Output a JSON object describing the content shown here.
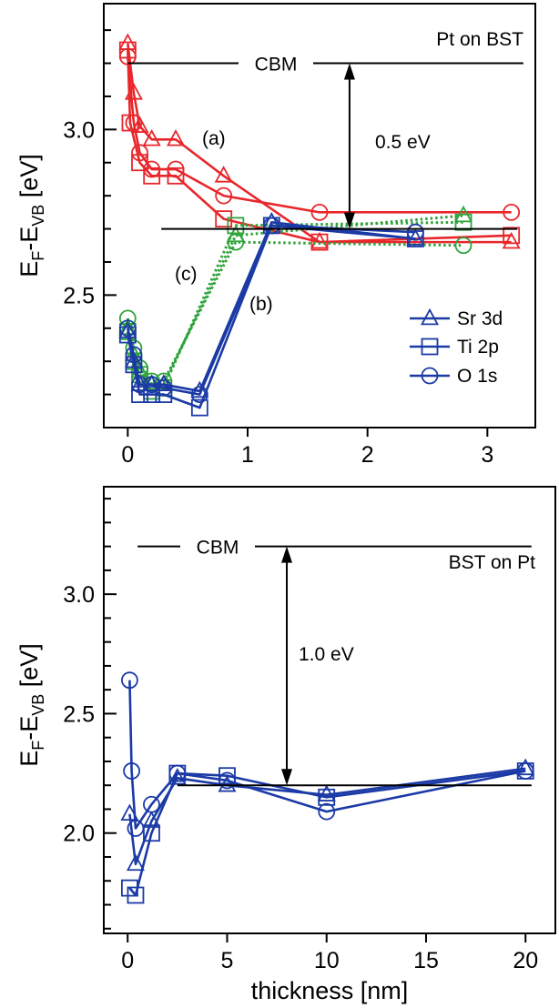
{
  "colors": {
    "red": "#e8262b",
    "green": "#2ea33a",
    "blue": "#1b3aa6",
    "black": "#000000"
  },
  "shared": {
    "xlabel": "thickness [nm]"
  },
  "chart_data": [
    {
      "type": "line",
      "panel": "top",
      "title": "Pt on BST",
      "ylabel_main": "E",
      "ylabel_sub1": "F",
      "ylabel_mid": "-E",
      "ylabel_sub2": "VB",
      "ylabel_unit": " [eV]",
      "xlim": [
        -0.2,
        3.4
      ],
      "ylim": [
        2.1,
        3.38
      ],
      "xticks": [
        0,
        1,
        2,
        3
      ],
      "xtick_labels": [
        "0",
        "1",
        "2",
        "3"
      ],
      "yticks": [
        2.5,
        3.0
      ],
      "ytick_labels": [
        "2.5",
        "3.0"
      ],
      "cbm": {
        "label": "CBM",
        "y": 3.2,
        "x_range": [
          0.0,
          3.3
        ]
      },
      "ref_level": {
        "y": 2.7,
        "x_range": [
          0.28,
          3.25
        ]
      },
      "arrow": {
        "x": 1.85,
        "y_from": 2.7,
        "y_to": 3.2,
        "label": "0.5 eV"
      },
      "annotations": [
        {
          "text": "(a)",
          "x": 0.69,
          "y": 2.98
        },
        {
          "text": "(b)",
          "x": 1.1,
          "y": 2.41
        },
        {
          "text": "(c)",
          "x": 0.48,
          "y": 2.51
        }
      ],
      "legend": {
        "position": "right",
        "entries": [
          {
            "label": "Sr 3d",
            "marker": "triangle"
          },
          {
            "label": "Ti 2p",
            "marker": "square"
          },
          {
            "label": "O 1s",
            "marker": "circle"
          }
        ]
      },
      "series": [
        {
          "color": "red",
          "style": "solid",
          "marker": "triangle",
          "x": [
            0,
            0.05,
            0.1,
            0.2,
            0.4,
            0.8,
            1.6,
            3.2
          ],
          "y": [
            3.26,
            3.11,
            3.01,
            2.97,
            2.97,
            2.86,
            2.66,
            2.66
          ]
        },
        {
          "color": "red",
          "style": "solid",
          "marker": "square",
          "x": [
            0,
            0.02,
            0.1,
            0.2,
            0.4,
            0.8,
            1.6,
            3.2
          ],
          "y": [
            3.24,
            3.02,
            2.9,
            2.86,
            2.86,
            2.73,
            2.66,
            2.68
          ]
        },
        {
          "color": "red",
          "style": "solid",
          "marker": "circle",
          "x": [
            0,
            0.05,
            0.1,
            0.2,
            0.4,
            0.8,
            1.6,
            3.2
          ],
          "y": [
            3.22,
            3.02,
            2.93,
            2.88,
            2.88,
            2.8,
            2.75,
            2.75
          ]
        },
        {
          "color": "green",
          "style": "dotted",
          "marker": "triangle",
          "x": [
            0,
            0.05,
            0.1,
            0.2,
            0.3,
            0.9,
            2.8
          ],
          "y": [
            2.4,
            2.32,
            2.27,
            2.23,
            2.23,
            2.68,
            2.74
          ]
        },
        {
          "color": "green",
          "style": "dotted",
          "marker": "square",
          "x": [
            0,
            0.05,
            0.1,
            0.2,
            0.3,
            0.9,
            2.8
          ],
          "y": [
            2.39,
            2.3,
            2.26,
            2.21,
            2.22,
            2.71,
            2.72
          ]
        },
        {
          "color": "green",
          "style": "dotted",
          "marker": "circle",
          "x": [
            0,
            0.05,
            0.1,
            0.2,
            0.3,
            0.9,
            2.8
          ],
          "y": [
            2.43,
            2.34,
            2.28,
            2.24,
            2.24,
            2.66,
            2.65
          ]
        },
        {
          "color": "blue",
          "style": "solid",
          "marker": "triangle",
          "x": [
            0,
            0.05,
            0.1,
            0.2,
            0.3,
            0.6,
            1.2,
            2.4
          ],
          "y": [
            2.39,
            2.3,
            2.23,
            2.23,
            2.23,
            2.21,
            2.72,
            2.67
          ]
        },
        {
          "color": "blue",
          "style": "solid",
          "marker": "square",
          "x": [
            0,
            0.05,
            0.1,
            0.2,
            0.3,
            0.6,
            1.2,
            2.4
          ],
          "y": [
            2.38,
            2.29,
            2.2,
            2.2,
            2.2,
            2.16,
            2.71,
            2.67
          ]
        },
        {
          "color": "blue",
          "style": "solid",
          "marker": "circle",
          "x": [
            0,
            0.05,
            0.1,
            0.2,
            0.3,
            0.6,
            1.2,
            2.4
          ],
          "y": [
            2.4,
            2.32,
            2.23,
            2.23,
            2.22,
            2.2,
            2.71,
            2.69
          ]
        }
      ]
    },
    {
      "type": "line",
      "panel": "bottom",
      "title": "BST on Pt",
      "ylabel_main": "E",
      "ylabel_sub1": "F",
      "ylabel_mid": "-E",
      "ylabel_sub2": "VB",
      "ylabel_unit": " [eV]",
      "xlim": [
        -1.2,
        21.5
      ],
      "ylim": [
        1.58,
        3.45
      ],
      "xticks": [
        0,
        5,
        10,
        15,
        20
      ],
      "xtick_labels": [
        "0",
        "5",
        "10",
        "15",
        "20"
      ],
      "yticks": [
        2.0,
        2.5,
        3.0
      ],
      "ytick_labels": [
        "2.0",
        "2.5",
        "3.0"
      ],
      "cbm": {
        "label": "CBM",
        "y": 3.2,
        "x_range": [
          0.5,
          20.3
        ]
      },
      "ref_level": {
        "y": 2.2,
        "x_range": [
          2.5,
          20.3
        ]
      },
      "arrow": {
        "x": 8.0,
        "y_from": 2.2,
        "y_to": 3.2,
        "label": "1.0 eV"
      },
      "annotations": [],
      "series": [
        {
          "color": "blue",
          "style": "solid",
          "marker": "triangle",
          "x": [
            0.1,
            0.4,
            1.2,
            2.5,
            5,
            10,
            20
          ],
          "y": [
            2.08,
            1.87,
            2.05,
            2.23,
            2.2,
            2.16,
            2.27
          ]
        },
        {
          "color": "blue",
          "style": "solid",
          "marker": "square",
          "x": [
            0.1,
            0.4,
            1.2,
            2.5,
            5,
            10,
            20
          ],
          "y": [
            1.77,
            1.74,
            2.0,
            2.25,
            2.24,
            2.15,
            2.26
          ]
        },
        {
          "color": "blue",
          "style": "solid",
          "marker": "circle",
          "x": [
            0.1,
            0.2,
            0.4,
            1.2,
            2.5,
            5,
            10,
            20
          ],
          "y": [
            2.64,
            2.26,
            2.02,
            2.12,
            2.25,
            2.22,
            2.09,
            2.26
          ]
        }
      ]
    }
  ]
}
